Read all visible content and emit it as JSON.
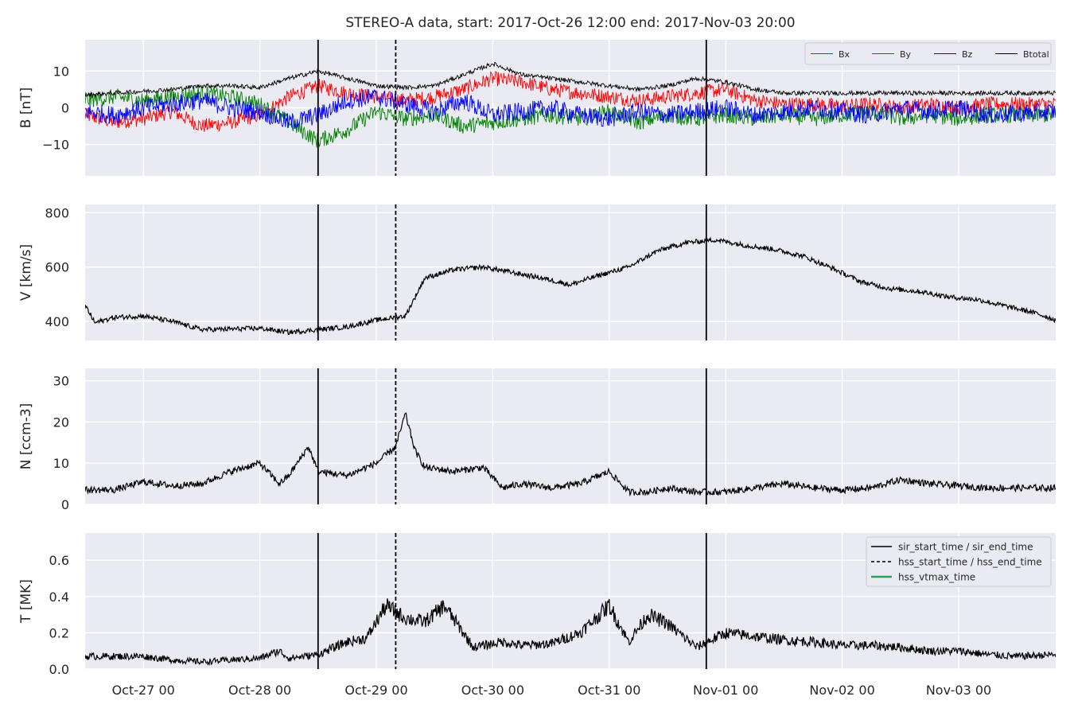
{
  "title": "STEREO-A data, start: 2017-Oct-26 12:00  end: 2017-Nov-03 20:00",
  "chart_data": {
    "type": "line",
    "x_range": [
      "2017-10-26 12:00",
      "2017-11-03 20:00"
    ],
    "x_ticks": [
      "Oct-27 00",
      "Oct-28 00",
      "Oct-29 00",
      "Oct-30 00",
      "Oct-31 00",
      "Nov-01 00",
      "Nov-02 00",
      "Nov-03 00"
    ],
    "x_tick_dates": [
      "2017-10-27",
      "2017-10-28",
      "2017-10-29",
      "2017-10-30",
      "2017-10-31",
      "2017-11-01",
      "2017-11-02",
      "2017-11-03"
    ],
    "grid": true,
    "event_lines": [
      {
        "name": "sir_start_time / sir_end_time",
        "style": "solid",
        "color": "#000000",
        "times": [
          "2017-10-28 12:00",
          "2017-10-31 20:00"
        ]
      },
      {
        "name": "hss_start_time / hss_end_time",
        "style": "dashed",
        "color": "#000000",
        "times": [
          "2017-10-29 04:00"
        ]
      },
      {
        "name": "hss_vtmax_time",
        "style": "solid",
        "color": "#2ca05a",
        "times": []
      }
    ],
    "panels": [
      {
        "id": "b",
        "ylabel": "B [nT]",
        "ylim": [
          -18.5,
          18.5
        ],
        "yticks": [
          -10,
          0,
          10
        ],
        "legend": "top-right",
        "series": [
          {
            "name": "Bx",
            "color": "#ff0000",
            "t_hours": [
              0,
              6,
              12,
              18,
              24,
              30,
              36,
              42,
              48,
              54,
              60,
              66,
              72,
              78,
              84,
              90,
              96,
              102,
              108,
              114,
              120,
              126,
              132,
              138,
              144,
              150,
              156,
              162,
              168,
              174,
              180,
              186,
              200
            ],
            "values": [
              -2,
              -4,
              -3,
              -1,
              -5,
              -4,
              -2,
              3,
              6,
              4,
              3,
              2,
              3,
              5,
              8,
              7,
              5,
              4,
              3,
              2,
              3,
              4,
              5,
              2,
              1,
              1,
              0.5,
              1,
              0,
              1,
              0,
              1,
              1
            ]
          },
          {
            "name": "By",
            "color": "#008000",
            "t_hours": [
              0,
              6,
              12,
              18,
              24,
              30,
              36,
              42,
              48,
              54,
              60,
              66,
              72,
              78,
              84,
              90,
              96,
              102,
              108,
              114,
              120,
              126,
              132,
              138,
              144,
              150,
              156,
              162,
              168,
              174,
              180,
              186,
              200
            ],
            "values": [
              2,
              3,
              2,
              3,
              4,
              3,
              1,
              -4,
              -9,
              -6,
              -1,
              -3,
              -2,
              -5,
              -4,
              -3,
              -2,
              -3,
              -1,
              -4,
              -2,
              -3,
              -2,
              -3,
              -2,
              -3,
              -2,
              -1,
              -3,
              -2,
              -3,
              -2,
              -2
            ]
          },
          {
            "name": "Bz",
            "color": "#0000ff",
            "t_hours": [
              0,
              6,
              12,
              18,
              24,
              30,
              36,
              42,
              48,
              54,
              60,
              66,
              72,
              78,
              84,
              90,
              96,
              102,
              108,
              114,
              120,
              126,
              132,
              138,
              144,
              150,
              156,
              162,
              168,
              174,
              180,
              186,
              200
            ],
            "values": [
              -1,
              -2,
              0,
              1,
              2,
              0,
              -1,
              -4,
              -2,
              2,
              3,
              1,
              -1,
              2,
              -2,
              -1,
              0,
              -2,
              -3,
              -1,
              -2,
              -1,
              0,
              -2,
              -1,
              0,
              -1,
              -2,
              0,
              -1,
              0,
              -2,
              -1
            ]
          },
          {
            "name": "Btotal",
            "color": "#000000",
            "t_hours": [
              0,
              6,
              12,
              18,
              24,
              30,
              36,
              42,
              48,
              54,
              60,
              66,
              72,
              78,
              84,
              90,
              96,
              102,
              108,
              114,
              120,
              126,
              132,
              138,
              144,
              150,
              156,
              162,
              168,
              174,
              180,
              186,
              200
            ],
            "values": [
              3.5,
              4,
              4.5,
              5,
              6,
              6,
              5.5,
              8,
              10,
              8,
              6,
              5.5,
              6,
              9,
              12,
              9,
              8,
              7,
              6,
              5,
              6,
              8,
              7,
              5,
              4,
              4,
              4,
              4,
              4,
              4,
              4,
              4,
              4
            ]
          }
        ]
      },
      {
        "id": "v",
        "ylabel": "V [km/s]",
        "ylim": [
          330,
          830
        ],
        "yticks": [
          400,
          600,
          800
        ],
        "series": [
          {
            "name": "V",
            "color": "#000000",
            "t_hours": [
              0,
              2,
              6,
              12,
              18,
              24,
              30,
              36,
              42,
              48,
              54,
              60,
              66,
              70,
              76,
              82,
              88,
              94,
              100,
              106,
              112,
              118,
              124,
              130,
              136,
              142,
              148,
              154,
              160,
              166,
              172,
              178,
              184,
              190,
              196,
              200
            ],
            "values": [
              460,
              395,
              415,
              420,
              400,
              370,
              372,
              375,
              360,
              370,
              380,
              405,
              420,
              560,
              590,
              600,
              580,
              560,
              535,
              570,
              600,
              660,
              690,
              700,
              680,
              665,
              640,
              595,
              545,
              520,
              510,
              490,
              480,
              455,
              430,
              405
            ]
          }
        ]
      },
      {
        "id": "n",
        "ylabel": "N [ccm-3]",
        "ylim": [
          0,
          33
        ],
        "yticks": [
          0,
          10,
          20,
          30
        ],
        "series": [
          {
            "name": "N",
            "color": "#000000",
            "t_hours": [
              0,
              6,
              12,
              18,
              24,
              30,
              36,
              40,
              42,
              46,
              48,
              54,
              60,
              64,
              66,
              68,
              70,
              76,
              82,
              86,
              90,
              96,
              102,
              108,
              112,
              116,
              120,
              126,
              132,
              138,
              144,
              150,
              156,
              162,
              168,
              174,
              180,
              186,
              192,
              200
            ],
            "values": [
              3.5,
              3.5,
              5.5,
              4.5,
              5,
              8,
              10,
              5,
              7,
              14,
              8,
              7,
              10,
              14,
              22,
              13,
              9,
              8,
              9,
              4,
              5,
              4,
              5,
              8,
              3,
              3,
              4,
              3,
              3,
              4,
              5,
              4,
              3.5,
              4,
              6,
              5,
              4.5,
              4,
              4,
              4
            ]
          }
        ]
      },
      {
        "id": "t",
        "ylabel": "T [MK]",
        "ylim": [
          0.0,
          0.75
        ],
        "yticks": [
          0.0,
          0.2,
          0.4,
          0.6
        ],
        "legend": "top-right",
        "series": [
          {
            "name": "T",
            "color": "#000000",
            "t_hours": [
              0,
              6,
              12,
              18,
              24,
              30,
              36,
              40,
              42,
              48,
              54,
              58,
              62,
              66,
              70,
              74,
              80,
              86,
              90,
              96,
              102,
              108,
              112,
              116,
              120,
              126,
              132,
              138,
              144,
              150,
              156,
              162,
              168,
              174,
              180,
              186,
              192,
              200
            ],
            "values": [
              0.07,
              0.07,
              0.07,
              0.05,
              0.04,
              0.05,
              0.06,
              0.1,
              0.06,
              0.08,
              0.15,
              0.17,
              0.35,
              0.28,
              0.26,
              0.35,
              0.12,
              0.15,
              0.13,
              0.14,
              0.2,
              0.35,
              0.15,
              0.3,
              0.25,
              0.12,
              0.2,
              0.18,
              0.16,
              0.15,
              0.13,
              0.13,
              0.12,
              0.1,
              0.1,
              0.08,
              0.07,
              0.08
            ]
          }
        ]
      }
    ]
  }
}
